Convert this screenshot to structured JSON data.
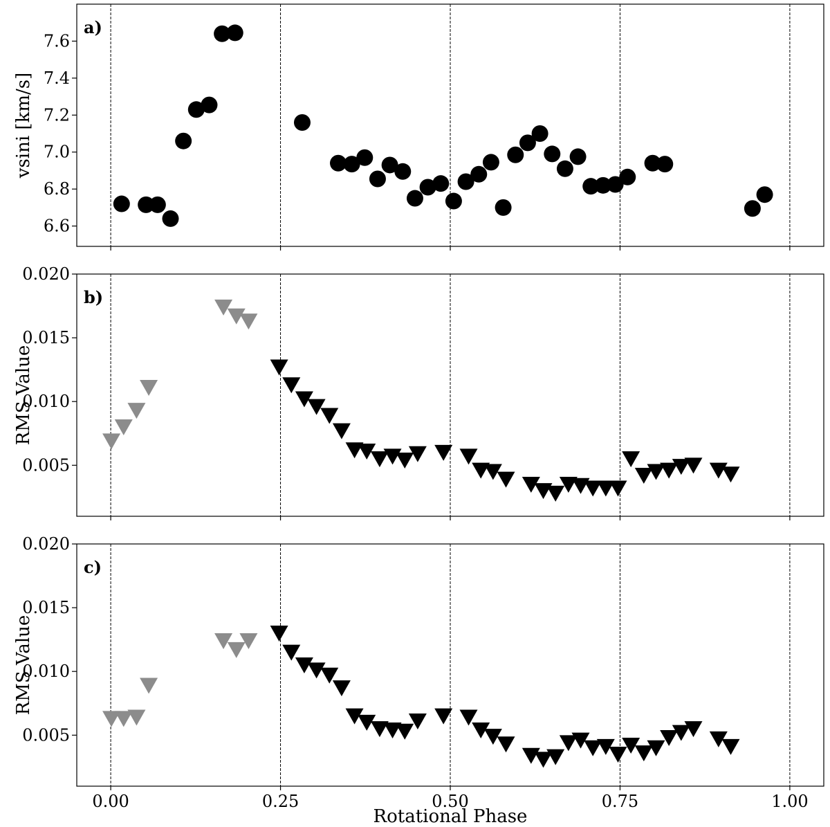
{
  "chart_data": [
    {
      "type": "scatter",
      "panel_label": "a)",
      "ylabel": "vsini [km/s]",
      "xlim": [
        -0.05,
        1.05
      ],
      "ylim": [
        6.49,
        7.8
      ],
      "yticks": [
        6.6,
        6.8,
        7.0,
        7.2,
        7.4,
        7.6
      ],
      "ytick_labels": [
        "6.6",
        "6.8",
        "7.0",
        "7.2",
        "7.4",
        "7.6"
      ],
      "vlines": [
        0.0,
        0.25,
        0.5,
        0.75,
        1.0
      ],
      "marker": "circle",
      "series": [
        {
          "color": "#000000",
          "x": [
            0.016,
            0.052,
            0.069,
            0.088,
            0.107,
            0.126,
            0.145,
            0.164,
            0.183,
            0.282,
            0.335,
            0.355,
            0.374,
            0.393,
            0.411,
            0.43,
            0.448,
            0.467,
            0.486,
            0.505,
            0.523,
            0.542,
            0.56,
            0.578,
            0.596,
            0.614,
            0.632,
            0.65,
            0.669,
            0.688,
            0.707,
            0.725,
            0.743,
            0.761,
            0.798,
            0.816,
            0.945,
            0.963
          ],
          "y": [
            6.72,
            6.715,
            6.715,
            6.64,
            7.06,
            7.23,
            7.255,
            7.64,
            7.645,
            7.16,
            6.94,
            6.935,
            6.97,
            6.855,
            6.93,
            6.895,
            6.75,
            6.81,
            6.83,
            6.735,
            6.84,
            6.88,
            6.945,
            6.7,
            6.985,
            7.05,
            7.1,
            6.99,
            6.91,
            6.975,
            6.815,
            6.82,
            6.825,
            6.865,
            6.94,
            6.935,
            6.695,
            6.77
          ]
        }
      ]
    },
    {
      "type": "scatter",
      "panel_label": "b)",
      "ylabel": "RMS Value",
      "xlim": [
        -0.05,
        1.05
      ],
      "ylim": [
        0.001,
        0.02
      ],
      "yticks": [
        0.005,
        0.01,
        0.015,
        0.02
      ],
      "ytick_labels": [
        "0.005",
        "0.010",
        "0.015",
        "0.020"
      ],
      "vlines": [
        0.0,
        0.25,
        0.5,
        0.75,
        1.0
      ],
      "marker": "triangle-down",
      "series": [
        {
          "color": "#8c8c8c",
          "x": [
            0.001,
            0.019,
            0.038,
            0.056,
            0.166,
            0.185,
            0.203
          ],
          "y": [
            0.0069,
            0.008,
            0.0093,
            0.0111,
            0.0174,
            0.0167,
            0.0163
          ]
        },
        {
          "color": "#000000",
          "x": [
            0.248,
            0.266,
            0.285,
            0.303,
            0.322,
            0.34,
            0.359,
            0.377,
            0.396,
            0.415,
            0.433,
            0.452,
            0.49,
            0.527,
            0.545,
            0.563,
            0.582,
            0.619,
            0.637,
            0.655,
            0.674,
            0.692,
            0.71,
            0.729,
            0.747,
            0.766,
            0.785,
            0.803,
            0.822,
            0.84,
            0.858,
            0.895,
            0.913
          ],
          "y": [
            0.0127,
            0.0113,
            0.0102,
            0.0096,
            0.0089,
            0.0077,
            0.0062,
            0.0061,
            0.0055,
            0.0057,
            0.0054,
            0.0059,
            0.006,
            0.0057,
            0.0046,
            0.0045,
            0.0039,
            0.0035,
            0.003,
            0.0028,
            0.0035,
            0.0034,
            0.0032,
            0.0032,
            0.0032,
            0.0055,
            0.0042,
            0.0045,
            0.0046,
            0.0049,
            0.005,
            0.0046,
            0.0043
          ]
        }
      ]
    },
    {
      "type": "scatter",
      "panel_label": "c)",
      "ylabel": "RMS Value",
      "xlabel": "Rotational Phase",
      "xlim": [
        -0.05,
        1.05
      ],
      "ylim": [
        0.001,
        0.02
      ],
      "yticks": [
        0.005,
        0.01,
        0.015,
        0.02
      ],
      "ytick_labels": [
        "0.005",
        "0.010",
        "0.015",
        "0.020"
      ],
      "xticks": [
        0.0,
        0.25,
        0.5,
        0.75,
        1.0
      ],
      "xtick_labels": [
        "0.00",
        "0.25",
        "0.50",
        "0.75",
        "1.00"
      ],
      "vlines": [
        0.0,
        0.25,
        0.5,
        0.75,
        1.0
      ],
      "marker": "triangle-down",
      "series": [
        {
          "color": "#8c8c8c",
          "x": [
            0.001,
            0.019,
            0.038,
            0.056,
            0.166,
            0.185,
            0.203
          ],
          "y": [
            0.0063,
            0.0063,
            0.0064,
            0.0089,
            0.0124,
            0.0117,
            0.0124
          ]
        },
        {
          "color": "#000000",
          "x": [
            0.248,
            0.266,
            0.285,
            0.303,
            0.322,
            0.34,
            0.359,
            0.377,
            0.396,
            0.415,
            0.433,
            0.452,
            0.49,
            0.527,
            0.545,
            0.563,
            0.582,
            0.619,
            0.637,
            0.655,
            0.674,
            0.692,
            0.71,
            0.729,
            0.747,
            0.766,
            0.785,
            0.803,
            0.822,
            0.84,
            0.858,
            0.895,
            0.913
          ],
          "y": [
            0.013,
            0.0115,
            0.0105,
            0.0101,
            0.0097,
            0.0087,
            0.0065,
            0.006,
            0.0055,
            0.0054,
            0.0053,
            0.0061,
            0.0065,
            0.0064,
            0.0054,
            0.0049,
            0.0043,
            0.0034,
            0.0031,
            0.0033,
            0.0044,
            0.0046,
            0.004,
            0.0041,
            0.0035,
            0.0042,
            0.0036,
            0.004,
            0.0048,
            0.0052,
            0.0055,
            0.0047,
            0.0041
          ]
        }
      ]
    }
  ]
}
